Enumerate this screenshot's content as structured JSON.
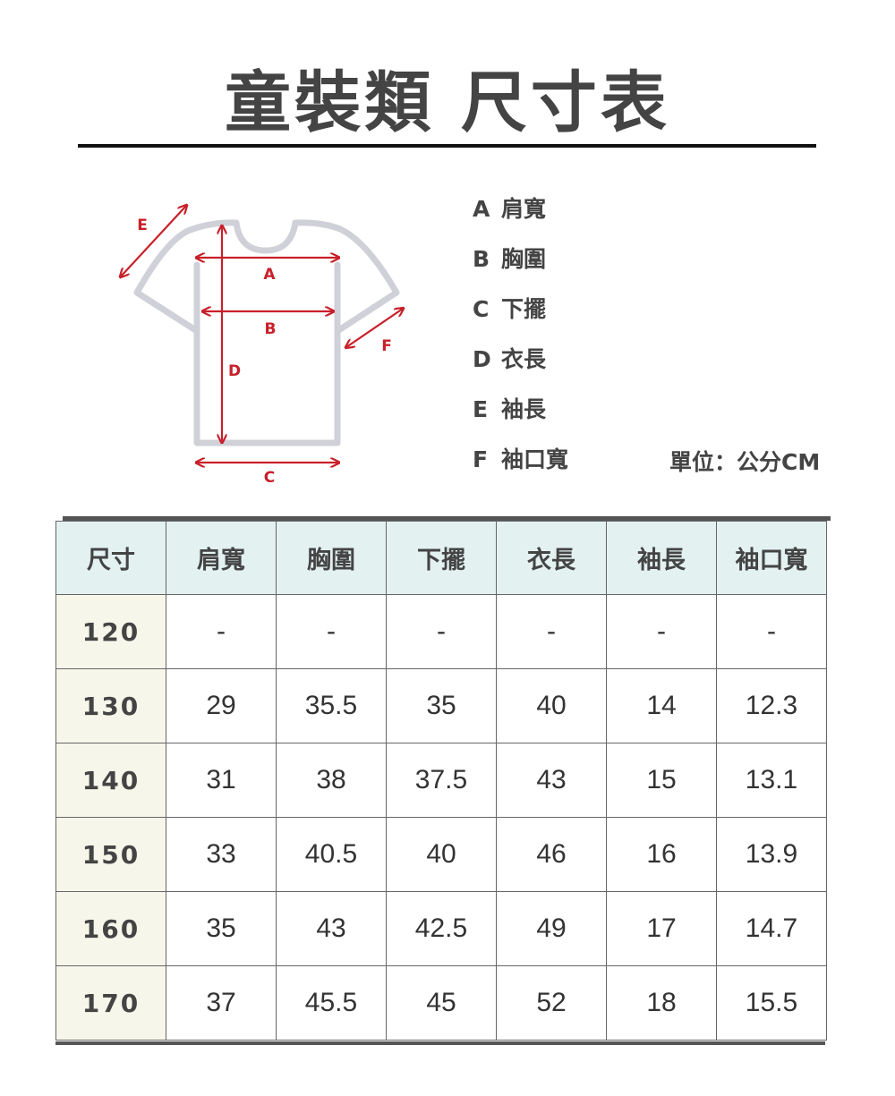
{
  "title": "童裝類 尺寸表",
  "colors": {
    "accent": "#c8202a",
    "shirt_outline": "#d0d0d8",
    "header_bg": "#e3f1f1",
    "size_col_bg": "#f7f6ea"
  },
  "diagram": {
    "labels": [
      "A",
      "B",
      "C",
      "D",
      "E",
      "F"
    ]
  },
  "legend": [
    {
      "key": "A",
      "label": "肩寬"
    },
    {
      "key": "B",
      "label": "胸圍"
    },
    {
      "key": "C",
      "label": "下擺"
    },
    {
      "key": "D",
      "label": "衣長"
    },
    {
      "key": "E",
      "label": "袖長"
    },
    {
      "key": "F",
      "label": "袖口寬"
    }
  ],
  "unit": "單位：公分CM",
  "table": {
    "headers": [
      "尺寸",
      "肩寬",
      "胸圍",
      "下擺",
      "衣長",
      "袖長",
      "袖口寬"
    ],
    "rows": [
      [
        "120",
        "-",
        "-",
        "-",
        "-",
        "-",
        "-"
      ],
      [
        "130",
        "29",
        "35.5",
        "35",
        "40",
        "14",
        "12.3"
      ],
      [
        "140",
        "31",
        "38",
        "37.5",
        "43",
        "15",
        "13.1"
      ],
      [
        "150",
        "33",
        "40.5",
        "40",
        "46",
        "16",
        "13.9"
      ],
      [
        "160",
        "35",
        "43",
        "42.5",
        "49",
        "17",
        "14.7"
      ],
      [
        "170",
        "37",
        "45.5",
        "45",
        "52",
        "18",
        "15.5"
      ]
    ]
  }
}
